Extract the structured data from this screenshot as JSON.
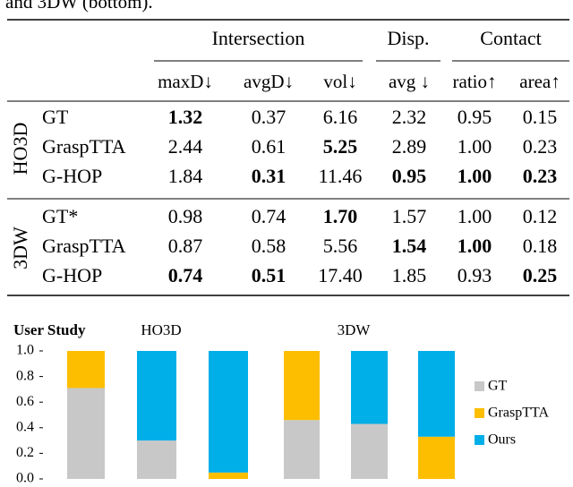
{
  "caption": "and 3DW (bottom).",
  "table": {
    "groups": [
      "Intersection",
      "Disp.",
      "Contact"
    ],
    "columns": [
      "maxD↓",
      "avgD↓",
      "vol↓",
      "avg ↓",
      "ratio↑",
      "area↑"
    ],
    "blocks": [
      {
        "label": "HO3D",
        "rows": [
          {
            "method": "GT",
            "cells": [
              "1.32",
              "0.37",
              "6.16",
              "2.32",
              "0.95",
              "0.15"
            ],
            "bold": [
              true,
              false,
              false,
              false,
              false,
              false
            ]
          },
          {
            "method": "GraspTTA",
            "cells": [
              "2.44",
              "0.61",
              "5.25",
              "2.89",
              "1.00",
              "0.23"
            ],
            "bold": [
              false,
              false,
              true,
              false,
              false,
              false
            ]
          },
          {
            "method": "G-HOP",
            "cells": [
              "1.84",
              "0.31",
              "11.46",
              "0.95",
              "1.00",
              "0.23"
            ],
            "bold": [
              false,
              true,
              false,
              true,
              true,
              true
            ]
          }
        ]
      },
      {
        "label": "3DW",
        "rows": [
          {
            "method": "GT*",
            "cells": [
              "0.98",
              "0.74",
              "1.70",
              "1.57",
              "1.00",
              "0.12"
            ],
            "bold": [
              false,
              false,
              true,
              false,
              false,
              false
            ]
          },
          {
            "method": "GraspTTA",
            "cells": [
              "0.87",
              "0.58",
              "5.56",
              "1.54",
              "1.00",
              "0.18"
            ],
            "bold": [
              false,
              false,
              false,
              true,
              true,
              false
            ]
          },
          {
            "method": "G-HOP",
            "cells": [
              "0.74",
              "0.51",
              "17.40",
              "1.85",
              "0.93",
              "0.25"
            ],
            "bold": [
              true,
              true,
              false,
              false,
              false,
              true
            ]
          }
        ]
      }
    ]
  },
  "chart_data": {
    "type": "stacked-bar",
    "title": "User Study",
    "group_labels": [
      "HO3D",
      "3DW"
    ],
    "categories": [
      null,
      null,
      null,
      null,
      null,
      null
    ],
    "series": [
      {
        "name": "GT",
        "color": "#c8c8c8",
        "values": [
          0.71,
          0.3,
          0,
          0.46,
          0.43,
          0
        ]
      },
      {
        "name": "GraspTTA",
        "color": "#fdbe00",
        "values": [
          0.29,
          0,
          0.05,
          0.54,
          0,
          0.33
        ]
      },
      {
        "name": "Ours",
        "color": "#00aee8",
        "values": [
          0,
          0.7,
          0.95,
          0,
          0.57,
          0.67
        ]
      }
    ],
    "ylim": [
      0,
      1
    ],
    "yticks": [
      {
        "value": 0,
        "label": "0.0"
      },
      0.2,
      0.4,
      0.6,
      0.8,
      {
        "value": 1,
        "label": "1.0"
      }
    ],
    "grid": false
  }
}
